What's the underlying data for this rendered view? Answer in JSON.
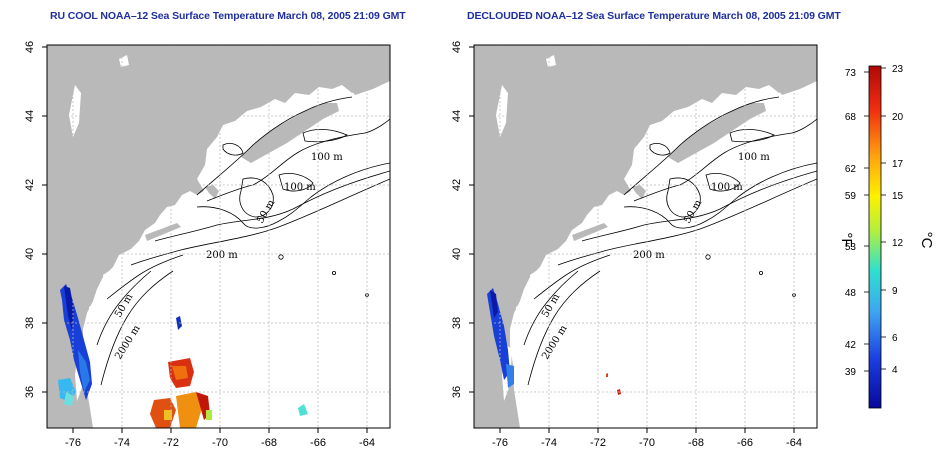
{
  "titles": {
    "left": "RU COOL NOAA–12 Sea Surface Temperature March 08, 2005 21:09 GMT",
    "right": "DECLOUDED NOAA–12 Sea Surface Temperature March 08, 2005 21:09 GMT"
  },
  "axes": {
    "longitude_ticks": [
      "-76",
      "-74",
      "-72",
      "-70",
      "-68",
      "-66",
      "-64"
    ],
    "latitude_ticks": [
      "46",
      "44",
      "42",
      "40",
      "38",
      "36"
    ],
    "lon_range": [
      -77.2,
      -63.2
    ],
    "lat_range": [
      35,
      46
    ]
  },
  "contours": {
    "label_100m_a": "100 m",
    "label_100m_b": "100 m",
    "label_50m_a": "50 m",
    "label_50m_b": "50 m",
    "label_200m": "200 m",
    "label_2000m": "2000 m"
  },
  "colorbar": {
    "fahrenheit_unit": "°F",
    "celsius_unit": "°C",
    "fahrenheit_ticks": [
      "73",
      "68",
      "62",
      "59",
      "53",
      "48",
      "42",
      "39"
    ],
    "celsius_ticks": [
      "23",
      "20",
      "17",
      "15",
      "12",
      "9",
      "6",
      "4"
    ],
    "colors": [
      "#08089a",
      "#1a3ce0",
      "#3fa4f0",
      "#2ee0d0",
      "#b4f03c",
      "#fff000",
      "#ffa010",
      "#f03010",
      "#b00808"
    ]
  },
  "colors": {
    "land": "#b9b9b9",
    "ocean": "#ffffff",
    "title": "#1f2f9e",
    "grid": "#bbbbbb"
  }
}
